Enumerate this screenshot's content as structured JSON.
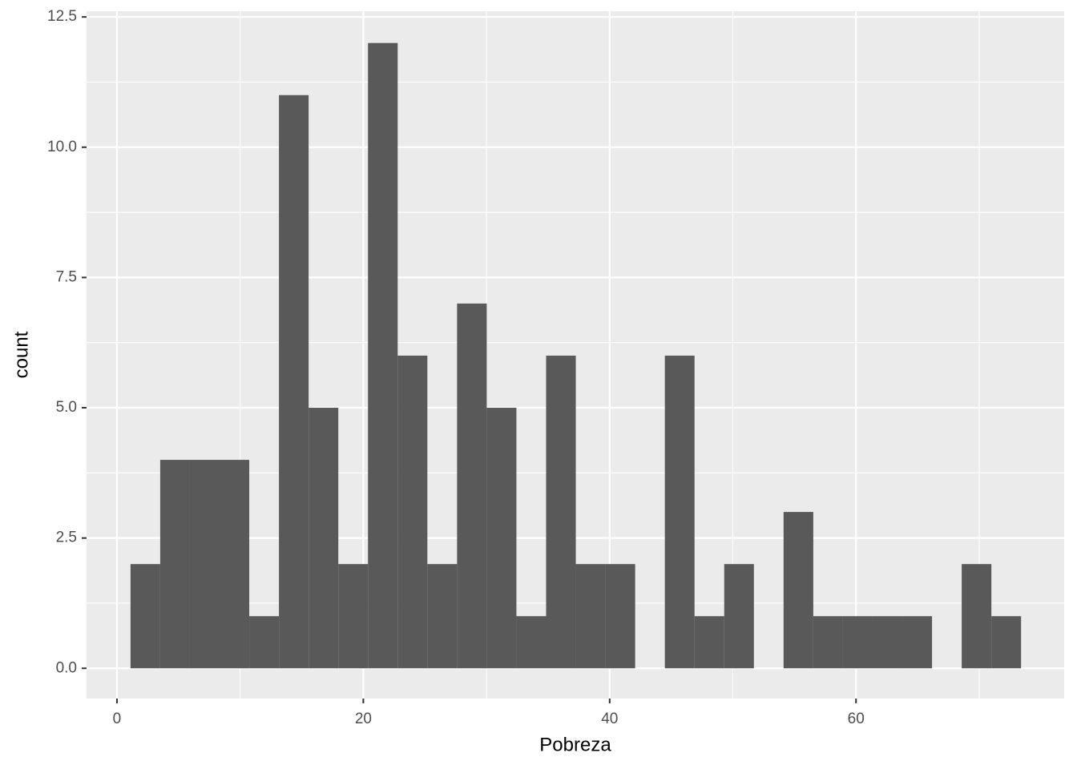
{
  "chart_data": {
    "type": "histogram",
    "x_label": "Pobreza",
    "y_label": "count",
    "bins": [
      1.1,
      3.51,
      5.92,
      8.33,
      10.74,
      13.15,
      15.56,
      17.97,
      20.38,
      22.79,
      25.2,
      27.61,
      30.02,
      32.43,
      34.84,
      37.25,
      39.66,
      42.07,
      44.48,
      46.89,
      49.3,
      51.71,
      54.12,
      56.53,
      58.94,
      61.35,
      63.76,
      66.17,
      68.58,
      70.99,
      73.4
    ],
    "values": [
      2,
      4,
      4,
      4,
      1,
      11,
      5,
      2,
      12,
      6,
      2,
      7,
      5,
      1,
      6,
      2,
      2,
      0,
      6,
      1,
      2,
      0,
      3,
      1,
      1,
      1,
      1,
      0,
      2,
      1
    ],
    "color": "#595959",
    "xlim": [
      -2.47,
      76.9
    ],
    "ylim": [
      -0.58,
      12.61
    ],
    "xticks": [
      0,
      20,
      40,
      60
    ],
    "yticks": [
      {
        "value": 0,
        "label": "0.0"
      },
      {
        "value": 2.5,
        "label": "2.5"
      },
      {
        "value": 5,
        "label": "5.0"
      },
      {
        "value": 7.5,
        "label": "7.5"
      },
      {
        "value": 10,
        "label": "10.0"
      },
      {
        "value": 12.5,
        "label": "12.5"
      }
    ],
    "x_minor_ticks": [
      10,
      30,
      50,
      70
    ],
    "y_minor_ticks": [
      1.25,
      3.75,
      6.25,
      8.75,
      11.25
    ],
    "grid": true
  }
}
